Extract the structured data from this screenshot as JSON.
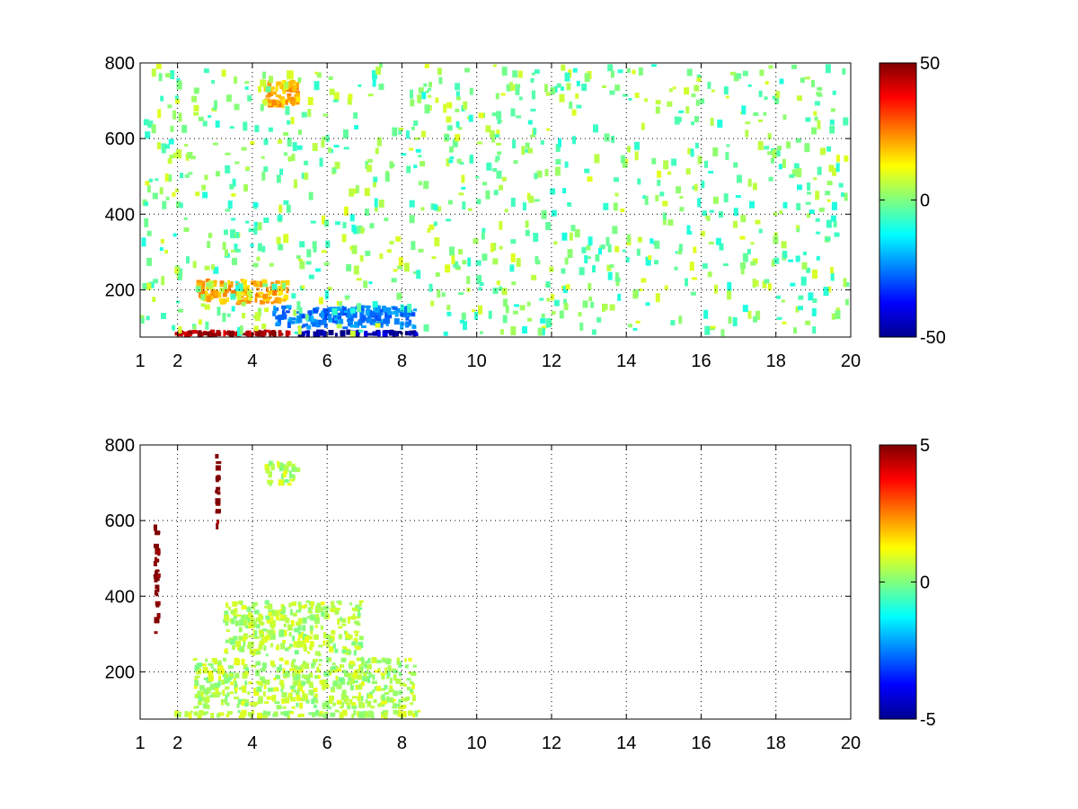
{
  "chart_data": [
    {
      "type": "heatmap",
      "title": "",
      "xlabel": "",
      "ylabel": "",
      "xlim": [
        1,
        20
      ],
      "ylim": [
        75,
        800
      ],
      "x_ticks": [
        1,
        2,
        4,
        6,
        8,
        10,
        12,
        14,
        16,
        18,
        20
      ],
      "x_tick_labels": [
        "1",
        "2",
        "4",
        "6",
        "8",
        "10",
        "12",
        "14",
        "16",
        "18",
        "20"
      ],
      "y_ticks": [
        200,
        400,
        600,
        800
      ],
      "y_tick_labels": [
        "200",
        "400",
        "600",
        "800"
      ],
      "grid": true,
      "colormap": "jet",
      "colorbar": {
        "min": -50,
        "max": 50,
        "ticks": [
          -50,
          0,
          50
        ],
        "tick_labels": [
          "-50",
          "0",
          "50"
        ]
      },
      "features": [
        {
          "description": "strong positive band near bottom",
          "x_range": [
            1.9,
            5.2
          ],
          "y_range": [
            75,
            95
          ],
          "value": 45
        },
        {
          "description": "strong negative band near bottom",
          "x_range": [
            5.2,
            8.5
          ],
          "y_range": [
            75,
            95
          ],
          "value": -45
        },
        {
          "description": "negative region",
          "x_range": [
            4.5,
            8.4
          ],
          "y_range": [
            95,
            160
          ],
          "value": -25
        },
        {
          "description": "positive cluster",
          "x_range": [
            2.5,
            5.0
          ],
          "y_range": [
            160,
            230
          ],
          "value": 20
        },
        {
          "description": "positive cluster",
          "x_range": [
            4.3,
            5.3
          ],
          "y_range": [
            680,
            760
          ],
          "value": 20
        },
        {
          "description": "sparse speckle",
          "x_range": [
            1,
            20
          ],
          "y_range": [
            75,
            800
          ],
          "value_range": [
            -10,
            10
          ]
        }
      ]
    },
    {
      "type": "heatmap",
      "title": "",
      "xlabel": "",
      "ylabel": "",
      "xlim": [
        1,
        20
      ],
      "ylim": [
        75,
        800
      ],
      "x_ticks": [
        1,
        2,
        4,
        6,
        8,
        10,
        12,
        14,
        16,
        18,
        20
      ],
      "x_tick_labels": [
        "1",
        "2",
        "4",
        "6",
        "8",
        "10",
        "12",
        "14",
        "16",
        "18",
        "20"
      ],
      "y_ticks": [
        200,
        400,
        600,
        800
      ],
      "y_tick_labels": [
        "200",
        "400",
        "600",
        "800"
      ],
      "grid": true,
      "colormap": "jet",
      "colorbar": {
        "min": -5,
        "max": 5,
        "ticks": [
          -5,
          0,
          5
        ],
        "tick_labels": [
          "-5",
          "0",
          "5"
        ]
      },
      "features": [
        {
          "description": "near-zero band",
          "x_range": [
            1.9,
            8.5
          ],
          "y_range": [
            75,
            100
          ],
          "value": 0.5
        },
        {
          "description": "near-zero cluster",
          "x_range": [
            2.4,
            8.4
          ],
          "y_range": [
            100,
            240
          ],
          "value": 0.5
        },
        {
          "description": "near-zero cluster",
          "x_range": [
            3.2,
            7.0
          ],
          "y_range": [
            240,
            390
          ],
          "value": 0.5
        },
        {
          "description": "near-zero cluster",
          "x_range": [
            4.3,
            5.3
          ],
          "y_range": [
            690,
            760
          ],
          "value": 0.5
        },
        {
          "description": "strong positive streak",
          "x_range": [
            1.35,
            1.55
          ],
          "y_range": [
            300,
            590
          ],
          "value": 5
        },
        {
          "description": "strong positive streak",
          "x_range": [
            3.0,
            3.15
          ],
          "y_range": [
            570,
            780
          ],
          "value": 5
        }
      ]
    }
  ]
}
